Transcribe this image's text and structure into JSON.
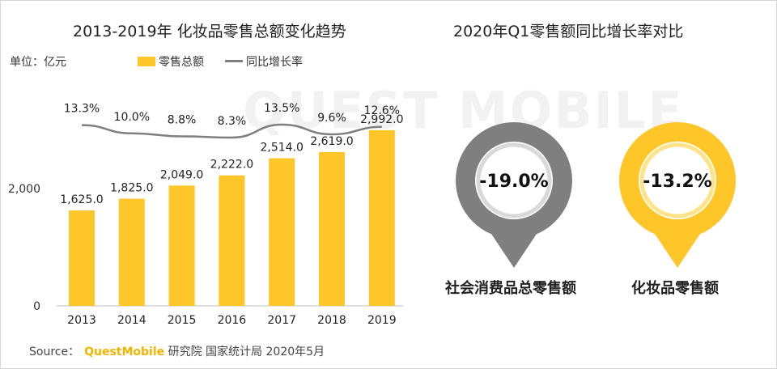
{
  "watermark": "QUEST MOBILE",
  "left_chart": {
    "title": "2013-2019年 化妆品零售总额变化趋势",
    "unit_label": "单位：亿元",
    "legend_bar": "零售总额",
    "legend_line": "同比增长率"
  },
  "right_chart": {
    "title": "2020年Q1零售额同比增长率对比"
  },
  "chart_data": [
    {
      "type": "bar",
      "categories": [
        "2013",
        "2014",
        "2015",
        "2016",
        "2017",
        "2018",
        "2019"
      ],
      "series": [
        {
          "name": "零售总额",
          "values": [
            1625.0,
            1825.0,
            2049.0,
            2222.0,
            2514.0,
            2619.0,
            2992.0
          ],
          "labels": [
            "1,625.0",
            "1,825.0",
            "2,049.0",
            "2,222.0",
            "2,514.0",
            "2,619.0",
            "2,992.0"
          ],
          "color": "#FFC629"
        },
        {
          "name": "同比增长率",
          "type": "line",
          "values": [
            13.3,
            10.0,
            8.8,
            8.3,
            13.5,
            9.6,
            12.6
          ],
          "labels": [
            "13.3%",
            "10.0%",
            "8.8%",
            "8.3%",
            "13.5%",
            "9.6%",
            "12.6%"
          ],
          "color": "#7f7f7f"
        }
      ],
      "yticks": [
        "0",
        "2,000"
      ],
      "ylim": [
        0,
        3500
      ],
      "grid": false
    },
    {
      "type": "bar",
      "categories": [
        "社会消费品总零售额",
        "化妆品零售额"
      ],
      "values": [
        -19.0,
        -13.2
      ],
      "labels": [
        "-19.0%",
        "-13.2%"
      ],
      "colors": [
        "#7f7f7f",
        "#FFC629"
      ]
    }
  ],
  "source": {
    "prefix": "Source：",
    "brand": "QuestMobile",
    "rest": "研究院 国家统计局 2020年5月"
  }
}
